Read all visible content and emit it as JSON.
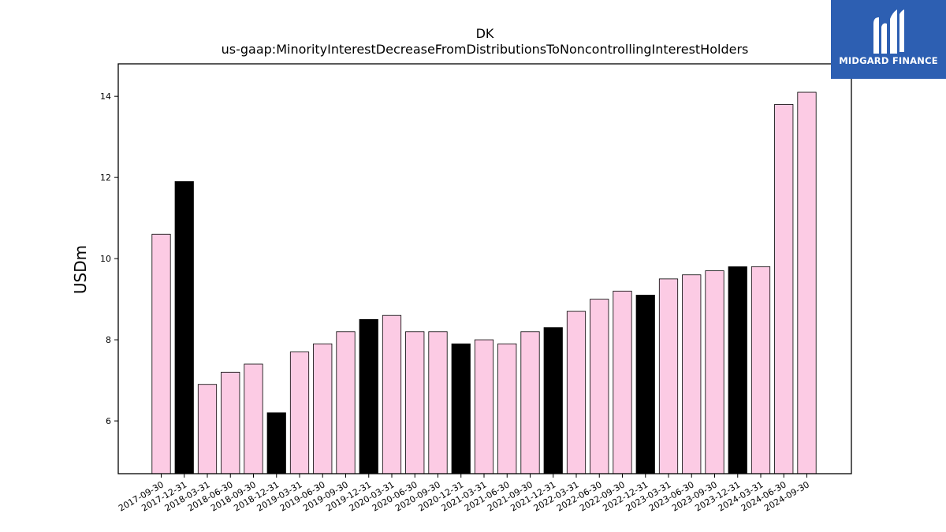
{
  "brand": {
    "name": "MIDGARD FINANCE",
    "logo_icon": "midgard-m-logo-icon",
    "bg_color": "#2d5fb2"
  },
  "chart_data": {
    "type": "bar",
    "title": "DK",
    "subtitle": "us-gaap:MinorityInterestDecreaseFromDistributionsToNoncontrollingInterestHolders",
    "xlabel": "",
    "ylabel": "USDm",
    "ylim": [
      4.7,
      14.8
    ],
    "yticks": [
      6,
      8,
      10,
      12,
      14
    ],
    "grid": false,
    "categories": [
      "2017-09-30",
      "2017-12-31",
      "2018-03-31",
      "2018-06-30",
      "2018-09-30",
      "2018-12-31",
      "2019-03-31",
      "2019-06-30",
      "2019-09-30",
      "2019-12-31",
      "2020-03-31",
      "2020-06-30",
      "2020-09-30",
      "2020-12-31",
      "2021-03-31",
      "2021-06-30",
      "2021-09-30",
      "2021-12-31",
      "2022-03-31",
      "2022-06-30",
      "2022-09-30",
      "2022-12-31",
      "2023-03-31",
      "2023-06-30",
      "2023-09-30",
      "2023-12-31",
      "2024-03-31",
      "2024-06-30",
      "2024-09-30"
    ],
    "values": [
      10.6,
      11.9,
      6.9,
      7.2,
      7.4,
      6.2,
      7.7,
      7.9,
      8.2,
      8.5,
      8.6,
      8.2,
      8.2,
      7.9,
      8.0,
      7.9,
      8.2,
      8.3,
      8.7,
      9.0,
      9.2,
      9.1,
      9.5,
      9.6,
      9.7,
      9.8,
      9.8,
      13.8,
      14.1
    ],
    "highlight": [
      false,
      true,
      false,
      false,
      false,
      true,
      false,
      false,
      false,
      true,
      false,
      false,
      false,
      true,
      false,
      false,
      false,
      true,
      false,
      false,
      false,
      true,
      false,
      false,
      false,
      true,
      false,
      false,
      false
    ],
    "colors": {
      "default": "#fccbe4",
      "highlight": "#000000",
      "edge": "#000000"
    }
  }
}
